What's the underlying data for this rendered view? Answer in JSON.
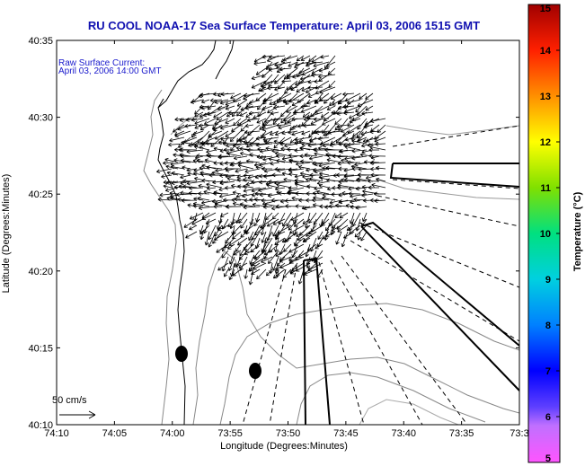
{
  "title": "RU COOL  NOAA-17  Sea Surface Temperature:  April 03, 2006 1515 GMT",
  "annotation": {
    "line1": "Raw Surface Current:",
    "line2": "April 03, 2006 14:00 GMT"
  },
  "scale_label": "50 cm/s",
  "axes": {
    "xlabel": "Longitude (Degrees:Minutes)",
    "ylabel": "Latitude (Degrees:Minutes)",
    "xticks": [
      "74:10",
      "74:05",
      "74:00",
      "73:55",
      "73:50",
      "73:45",
      "73:40",
      "73:35",
      "73:3"
    ],
    "yticks": [
      "40:35",
      "40:30",
      "40:25",
      "40:20",
      "40:15",
      "40:10"
    ]
  },
  "colorbar": {
    "label": "Temperature (°C)",
    "ticks": [
      "15",
      "14",
      "13",
      "12",
      "11",
      "10",
      "9",
      "8",
      "7",
      "6",
      "5"
    ],
    "range": [
      5,
      15
    ]
  }
}
